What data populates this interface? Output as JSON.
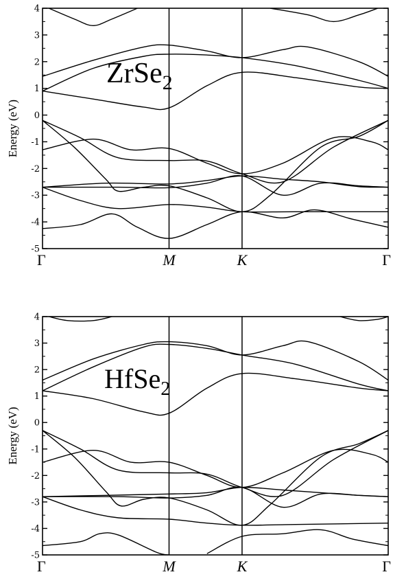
{
  "chart_data": [
    {
      "type": "line",
      "material": {
        "base": "ZrSe",
        "sub": "2"
      },
      "ylabel": "Energy (eV)",
      "ylim": [
        -5,
        4
      ],
      "yticks": [
        "4",
        "3",
        "2",
        "1",
        "0",
        "-1",
        "-2",
        "-3",
        "-4",
        "-5"
      ],
      "kpoints": [
        {
          "label": "Γ",
          "pos": 0.0,
          "italic": false
        },
        {
          "label": "M",
          "pos": 1.0,
          "italic": true
        },
        {
          "label": "K",
          "pos": 1.577,
          "italic": true
        },
        {
          "label": "Γ",
          "pos": 2.732,
          "italic": false
        }
      ],
      "grid": false,
      "series": [
        {
          "values": [
            [
              0,
              -4.25
            ],
            [
              0.3,
              -4.1
            ],
            [
              0.55,
              -3.7
            ],
            [
              0.75,
              -4.2
            ],
            [
              1.0,
              -4.62
            ],
            [
              1.3,
              -4.1
            ],
            [
              1.577,
              -3.62
            ],
            [
              1.9,
              -3.85
            ],
            [
              2.15,
              -3.55
            ],
            [
              2.45,
              -3.9
            ],
            [
              2.732,
              -4.2
            ]
          ]
        },
        {
          "values": [
            [
              0,
              -2.7
            ],
            [
              0.3,
              -3.2
            ],
            [
              0.6,
              -3.5
            ],
            [
              1.0,
              -3.35
            ],
            [
              1.3,
              -3.45
            ],
            [
              1.577,
              -3.62
            ],
            [
              2.0,
              -3.62
            ],
            [
              2.732,
              -3.62
            ]
          ]
        },
        {
          "values": [
            [
              0,
              -2.7
            ],
            [
              0.5,
              -2.55
            ],
            [
              1.0,
              -2.58
            ],
            [
              1.3,
              -2.45
            ],
            [
              1.577,
              -2.28
            ],
            [
              1.9,
              -2.4
            ],
            [
              2.2,
              -2.5
            ],
            [
              2.5,
              -2.68
            ],
            [
              2.732,
              -2.7
            ]
          ]
        },
        {
          "values": [
            [
              0,
              -2.7
            ],
            [
              0.6,
              -2.7
            ],
            [
              1.0,
              -2.72
            ],
            [
              1.3,
              -2.55
            ],
            [
              1.577,
              -2.28
            ],
            [
              1.9,
              -3.0
            ],
            [
              2.2,
              -2.55
            ],
            [
              2.5,
              -2.65
            ],
            [
              2.732,
              -2.7
            ]
          ]
        },
        {
          "values": [
            [
              0,
              -0.2
            ],
            [
              0.25,
              -1.2
            ],
            [
              0.5,
              -2.4
            ],
            [
              0.6,
              -2.85
            ],
            [
              0.8,
              -2.7
            ],
            [
              1.0,
              -2.65
            ],
            [
              1.3,
              -3.1
            ],
            [
              1.577,
              -3.62
            ],
            [
              1.8,
              -3.0
            ],
            [
              2.2,
              -1.2
            ],
            [
              2.5,
              -0.8
            ],
            [
              2.732,
              -0.2
            ]
          ]
        },
        {
          "values": [
            [
              0,
              -1.3
            ],
            [
              0.4,
              -0.9
            ],
            [
              0.7,
              -1.3
            ],
            [
              1.0,
              -1.25
            ],
            [
              1.3,
              -1.8
            ],
            [
              1.577,
              -2.2
            ],
            [
              1.9,
              -1.8
            ],
            [
              2.3,
              -0.85
            ],
            [
              2.6,
              -1.0
            ],
            [
              2.732,
              -1.3
            ]
          ]
        },
        {
          "values": [
            [
              0,
              -0.2
            ],
            [
              0.3,
              -0.85
            ],
            [
              0.6,
              -1.6
            ],
            [
              1.0,
              -1.7
            ],
            [
              1.3,
              -1.72
            ],
            [
              1.577,
              -2.2
            ],
            [
              1.9,
              -2.5
            ],
            [
              2.3,
              -1.2
            ],
            [
              2.732,
              -0.2
            ]
          ]
        },
        {
          "values": [
            [
              0,
              0.9
            ],
            [
              0.4,
              0.6
            ],
            [
              0.8,
              0.3
            ],
            [
              1.0,
              0.27
            ],
            [
              1.3,
              1.1
            ],
            [
              1.577,
              1.6
            ],
            [
              2.0,
              1.4
            ],
            [
              2.5,
              1.05
            ],
            [
              2.732,
              1.0
            ]
          ]
        },
        {
          "values": [
            [
              0,
              0.9
            ],
            [
              0.4,
              1.75
            ],
            [
              0.8,
              2.2
            ],
            [
              1.0,
              2.28
            ],
            [
              1.3,
              2.25
            ],
            [
              1.577,
              2.15
            ],
            [
              2.0,
              1.85
            ],
            [
              2.5,
              1.3
            ],
            [
              2.732,
              1.0
            ]
          ]
        },
        {
          "values": [
            [
              0,
              1.45
            ],
            [
              0.4,
              2.05
            ],
            [
              0.8,
              2.55
            ],
            [
              1.0,
              2.62
            ],
            [
              1.3,
              2.4
            ],
            [
              1.577,
              2.15
            ],
            [
              1.9,
              2.45
            ],
            [
              2.1,
              2.55
            ],
            [
              2.5,
              2.0
            ],
            [
              2.732,
              1.45
            ]
          ]
        },
        {
          "values": [
            [
              0.05,
              4.0
            ],
            [
              0.25,
              3.6
            ],
            [
              0.4,
              3.35
            ],
            [
              0.55,
              3.6
            ],
            [
              0.75,
              4.0
            ]
          ]
        },
        {
          "values": [
            [
              1.8,
              4.0
            ],
            [
              2.1,
              3.75
            ],
            [
              2.3,
              3.5
            ],
            [
              2.5,
              3.75
            ],
            [
              2.65,
              4.0
            ]
          ]
        }
      ]
    },
    {
      "type": "line",
      "material": {
        "base": "HfSe",
        "sub": "2"
      },
      "ylabel": "Energy (eV)",
      "ylim": [
        -5,
        4
      ],
      "yticks": [
        "4",
        "3",
        "2",
        "1",
        "0",
        "-1",
        "-2",
        "-3",
        "-4",
        "-5"
      ],
      "kpoints": [
        {
          "label": "Γ",
          "pos": 0.0,
          "italic": false
        },
        {
          "label": "M",
          "pos": 1.0,
          "italic": true
        },
        {
          "label": "K",
          "pos": 1.577,
          "italic": true
        },
        {
          "label": "Γ",
          "pos": 2.732,
          "italic": false
        }
      ],
      "grid": false,
      "series": [
        {
          "values": [
            [
              0,
              -4.65
            ],
            [
              0.3,
              -4.5
            ],
            [
              0.45,
              -4.2
            ],
            [
              0.6,
              -4.25
            ],
            [
              0.9,
              -4.9
            ],
            [
              1.0,
              -5.0
            ]
          ]
        },
        {
          "values": [
            [
              1.3,
              -4.95
            ],
            [
              1.577,
              -4.3
            ],
            [
              1.9,
              -4.2
            ],
            [
              2.2,
              -4.05
            ],
            [
              2.45,
              -4.4
            ],
            [
              2.732,
              -4.65
            ]
          ]
        },
        {
          "values": [
            [
              0,
              -2.8
            ],
            [
              0.3,
              -3.3
            ],
            [
              0.6,
              -3.6
            ],
            [
              1.0,
              -3.65
            ],
            [
              1.3,
              -3.8
            ],
            [
              1.577,
              -3.88
            ],
            [
              2.0,
              -3.85
            ],
            [
              2.732,
              -3.8
            ]
          ]
        },
        {
          "values": [
            [
              0,
              -2.8
            ],
            [
              0.5,
              -2.75
            ],
            [
              1.0,
              -2.7
            ],
            [
              1.3,
              -2.65
            ],
            [
              1.577,
              -2.45
            ],
            [
              1.9,
              -2.55
            ],
            [
              2.2,
              -2.65
            ],
            [
              2.5,
              -2.75
            ],
            [
              2.732,
              -2.8
            ]
          ]
        },
        {
          "values": [
            [
              0,
              -2.8
            ],
            [
              0.6,
              -2.8
            ],
            [
              1.0,
              -2.85
            ],
            [
              1.3,
              -2.75
            ],
            [
              1.577,
              -2.45
            ],
            [
              1.9,
              -3.2
            ],
            [
              2.2,
              -2.7
            ],
            [
              2.5,
              -2.75
            ],
            [
              2.732,
              -2.8
            ]
          ]
        },
        {
          "values": [
            [
              0,
              -0.3
            ],
            [
              0.25,
              -1.3
            ],
            [
              0.5,
              -2.6
            ],
            [
              0.62,
              -3.15
            ],
            [
              0.8,
              -2.9
            ],
            [
              1.0,
              -2.85
            ],
            [
              1.3,
              -3.3
            ],
            [
              1.577,
              -3.88
            ],
            [
              1.8,
              -3.1
            ],
            [
              2.2,
              -1.3
            ],
            [
              2.5,
              -0.8
            ],
            [
              2.732,
              -0.3
            ]
          ]
        },
        {
          "values": [
            [
              0,
              -1.5
            ],
            [
              0.4,
              -1.05
            ],
            [
              0.7,
              -1.5
            ],
            [
              1.0,
              -1.5
            ],
            [
              1.3,
              -2.0
            ],
            [
              1.577,
              -2.45
            ],
            [
              1.9,
              -1.9
            ],
            [
              2.3,
              -1.05
            ],
            [
              2.6,
              -1.2
            ],
            [
              2.732,
              -1.5
            ]
          ]
        },
        {
          "values": [
            [
              0,
              -0.3
            ],
            [
              0.3,
              -1.0
            ],
            [
              0.6,
              -1.8
            ],
            [
              1.0,
              -1.9
            ],
            [
              1.3,
              -1.95
            ],
            [
              1.577,
              -2.45
            ],
            [
              1.9,
              -2.75
            ],
            [
              2.3,
              -1.4
            ],
            [
              2.732,
              -0.3
            ]
          ]
        },
        {
          "values": [
            [
              0,
              1.2
            ],
            [
              0.4,
              0.9
            ],
            [
              0.8,
              0.4
            ],
            [
              1.0,
              0.35
            ],
            [
              1.3,
              1.3
            ],
            [
              1.577,
              1.85
            ],
            [
              2.0,
              1.65
            ],
            [
              2.5,
              1.3
            ],
            [
              2.732,
              1.2
            ]
          ]
        },
        {
          "values": [
            [
              0,
              1.2
            ],
            [
              0.4,
              2.1
            ],
            [
              0.8,
              2.85
            ],
            [
              1.0,
              2.95
            ],
            [
              1.3,
              2.8
            ],
            [
              1.577,
              2.55
            ],
            [
              2.0,
              2.2
            ],
            [
              2.5,
              1.45
            ],
            [
              2.732,
              1.2
            ]
          ]
        },
        {
          "values": [
            [
              0,
              1.6
            ],
            [
              0.4,
              2.4
            ],
            [
              0.8,
              2.95
            ],
            [
              1.0,
              3.05
            ],
            [
              1.3,
              2.9
            ],
            [
              1.577,
              2.55
            ],
            [
              1.9,
              2.9
            ],
            [
              2.1,
              3.05
            ],
            [
              2.5,
              2.3
            ],
            [
              2.732,
              1.6
            ]
          ]
        },
        {
          "values": [
            [
              0.05,
              4.0
            ],
            [
              0.2,
              3.85
            ],
            [
              0.4,
              3.85
            ],
            [
              0.55,
              4.0
            ]
          ]
        },
        {
          "values": [
            [
              2.35,
              4.0
            ],
            [
              2.5,
              3.85
            ],
            [
              2.65,
              3.9
            ],
            [
              2.732,
              4.0
            ]
          ]
        }
      ]
    }
  ]
}
